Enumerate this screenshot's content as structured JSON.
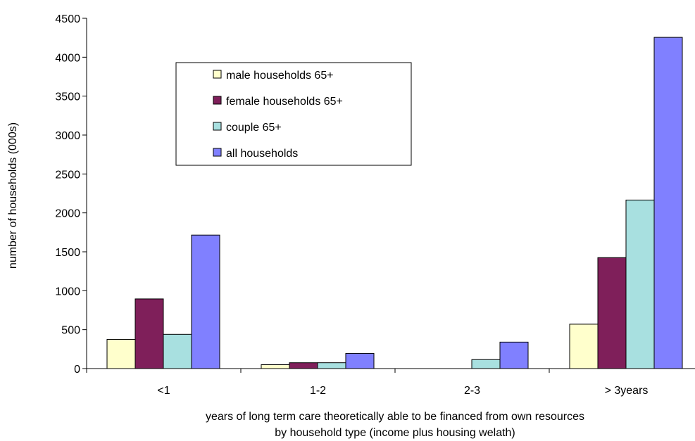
{
  "chart_data": {
    "type": "bar",
    "title": "",
    "categories": [
      "<1",
      "1-2",
      "2-3",
      "> 3years"
    ],
    "series": [
      {
        "name": "male households  65+",
        "color": "#FFFFCC",
        "values": [
          375,
          50,
          0,
          570
        ]
      },
      {
        "name": "female households 65+",
        "color": "#7F1F5A",
        "values": [
          895,
          75,
          0,
          1425
        ]
      },
      {
        "name": "couple 65+",
        "color": "#A8E0E0",
        "values": [
          440,
          75,
          115,
          2165
        ]
      },
      {
        "name": "all households",
        "color": "#8080FF",
        "values": [
          1715,
          195,
          340,
          4255
        ]
      }
    ],
    "ylim": [
      0,
      4500
    ],
    "yticks": [
      0,
      500,
      1000,
      1500,
      2000,
      2500,
      3000,
      3500,
      4000,
      4500
    ],
    "ylabel": "number of households (000s)",
    "xlabel": [
      "years of long term care theoretically able to be financed from own resources",
      "by household type (income plus housing welath)"
    ],
    "legend_position": "top-left inside plot",
    "grid": false
  }
}
